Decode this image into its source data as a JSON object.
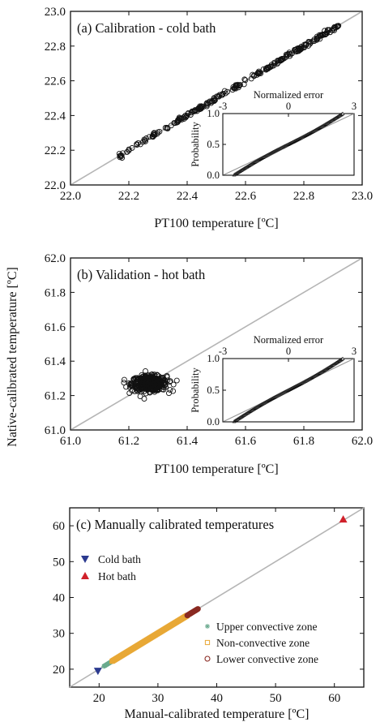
{
  "figure": {
    "shared_ylabel": "Native-calibrated temperature [ºC]"
  },
  "chart_data": [
    {
      "type": "scatter",
      "title": "(a) Calibration - cold bath",
      "xlabel": "PT100 temperature [ºC]",
      "ylabel": "Native-calibrated temperature [ºC]",
      "xlim": [
        22.0,
        23.0
      ],
      "ylim": [
        22.0,
        23.0
      ],
      "xticks": [
        "22.0",
        "22.2",
        "22.4",
        "22.6",
        "22.8",
        "23.0"
      ],
      "yticks": [
        "22.0",
        "22.2",
        "22.4",
        "22.6",
        "22.8",
        "23.0"
      ],
      "identity_line": true,
      "marker": "open-circle",
      "point_cloud": {
        "x_range": [
          22.16,
          22.92
        ],
        "pattern": "tight-band-along-identity",
        "offset": 0.0
      },
      "inset": {
        "type": "probability-plot",
        "xlabel": "Normalized error",
        "ylabel": "Probability",
        "xticks": [
          "-3",
          "0",
          "3"
        ],
        "yticks": [
          "0.0",
          "0.5",
          "1.0"
        ],
        "xlim": [
          -3,
          3
        ],
        "ylim": [
          0,
          1
        ]
      }
    },
    {
      "type": "scatter",
      "title": "(b) Validation - hot bath",
      "xlabel": "PT100 temperature [ºC]",
      "ylabel": "Native-calibrated temperature [ºC]",
      "xlim": [
        61.0,
        62.0
      ],
      "ylim": [
        61.0,
        62.0
      ],
      "xticks": [
        "61.0",
        "61.2",
        "61.4",
        "61.6",
        "61.8",
        "62.0"
      ],
      "yticks": [
        "61.0",
        "61.2",
        "61.4",
        "61.6",
        "61.8",
        "62.0"
      ],
      "identity_line": true,
      "marker": "open-circle",
      "point_cloud": {
        "center": [
          61.27,
          61.27
        ],
        "x_range": [
          61.17,
          61.36
        ],
        "y_range": [
          61.18,
          61.37
        ],
        "pattern": "cluster"
      },
      "inset": {
        "type": "probability-plot",
        "xlabel": "Normalized error",
        "ylabel": "Probability",
        "xticks": [
          "-3",
          "0",
          "3"
        ],
        "yticks": [
          "0.0",
          "0.5",
          "1.0"
        ],
        "xlim": [
          -3,
          3
        ],
        "ylim": [
          0,
          1
        ]
      }
    },
    {
      "type": "scatter",
      "title": "(c) Manually calibrated temperatures",
      "xlabel": "Manual-calibrated temperature [ºC]",
      "ylabel": "Native-calibrated temperature [ºC]",
      "xlim": [
        15,
        65
      ],
      "ylim": [
        15,
        65
      ],
      "xticks": [
        "20",
        "30",
        "40",
        "50",
        "60"
      ],
      "yticks": [
        "20",
        "30",
        "40",
        "50",
        "60"
      ],
      "identity_line": true,
      "series": [
        {
          "name": "Cold bath",
          "marker": "down-triangle",
          "color": "#2b3a8f",
          "points": [
            [
              19.8,
              19.5
            ]
          ]
        },
        {
          "name": "Hot bath",
          "marker": "up-triangle",
          "color": "#d0202a",
          "points": [
            [
              61.5,
              61.8
            ]
          ]
        },
        {
          "name": "Upper convective zone",
          "marker": "asterisk",
          "color": "#6aaa8e",
          "x_range": [
            20.8,
            22.2
          ]
        },
        {
          "name": "Non-convective zone",
          "marker": "open-square",
          "color": "#e8a836",
          "x_range": [
            22.2,
            35.0
          ]
        },
        {
          "name": "Lower convective zone",
          "marker": "open-circle",
          "color": "#8a2a22",
          "x_range": [
            35.0,
            36.8
          ]
        }
      ]
    }
  ]
}
